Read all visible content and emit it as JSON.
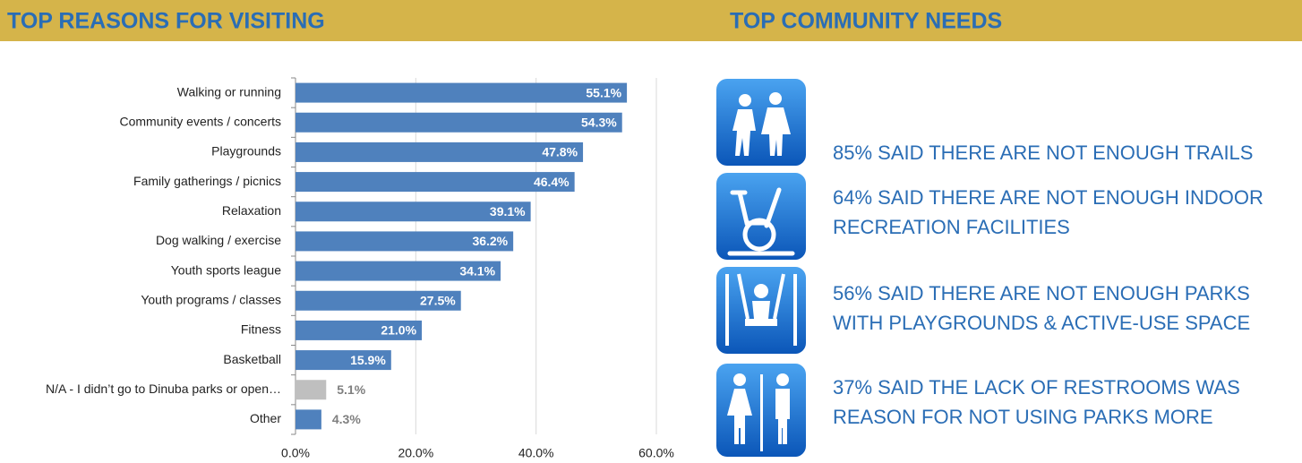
{
  "left_header": "TOP REASONS FOR VISITING",
  "right_header": "TOP COMMUNITY NEEDS",
  "chart_data": {
    "type": "hbar",
    "categories": [
      "Walking or running",
      "Community events / concerts",
      "Playgrounds",
      "Family gatherings / picnics",
      "Relaxation",
      "Dog walking / exercise",
      "Youth sports league",
      "Youth programs / classes",
      "Fitness",
      "Basketball",
      "N/A - I didn’t go to Dinuba parks or open…",
      "Other"
    ],
    "values": [
      55.1,
      54.3,
      47.8,
      46.4,
      39.1,
      36.2,
      34.1,
      27.5,
      21.0,
      15.9,
      5.1,
      4.3
    ],
    "value_labels": [
      "55.1%",
      "54.3%",
      "47.8%",
      "46.4%",
      "39.1%",
      "36.2%",
      "34.1%",
      "27.5%",
      "21.0%",
      "15.9%",
      "5.1%",
      "4.3%"
    ],
    "colors": [
      "#4f81bd",
      "#4f81bd",
      "#4f81bd",
      "#4f81bd",
      "#4f81bd",
      "#4f81bd",
      "#4f81bd",
      "#4f81bd",
      "#4f81bd",
      "#4f81bd",
      "#bfbfbf",
      "#4f81bd"
    ],
    "xlim": [
      0,
      60
    ],
    "xticks": [
      {
        "value": 0,
        "label": "0.0%"
      },
      {
        "value": 20,
        "label": "20.0%"
      },
      {
        "value": 40,
        "label": "40.0%"
      },
      {
        "value": 60,
        "label": "60.0%"
      }
    ],
    "grid": true
  },
  "needs": [
    {
      "lines": [
        "85% SAID THERE ARE NOT ENOUGH TRAILS"
      ]
    },
    {
      "lines": [
        "64% SAID THERE ARE NOT ENOUGH INDOOR",
        "RECREATION FACILITIES"
      ]
    },
    {
      "lines": [
        "56% SAID THERE ARE NOT ENOUGH PARKS",
        "WITH PLAYGROUNDS & ACTIVE-USE SPACE"
      ]
    },
    {
      "lines": [
        "37% SAID THE LACK OF RESTROOMS WAS",
        "REASON FOR NOT USING PARKS MORE"
      ]
    }
  ]
}
